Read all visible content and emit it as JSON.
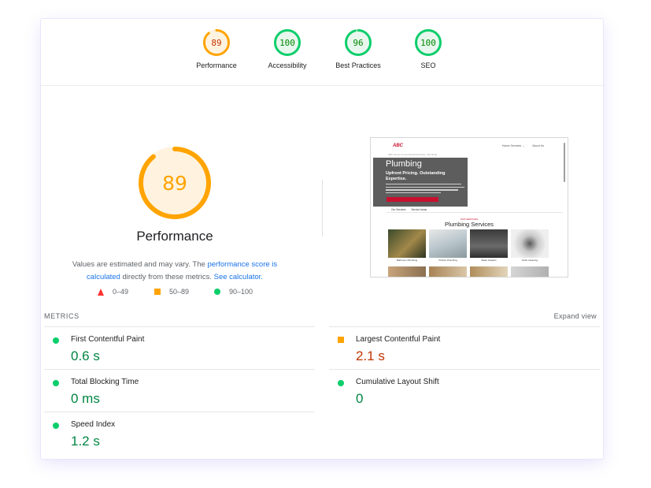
{
  "categories": [
    {
      "label": "Performance",
      "score": "89",
      "value": 89,
      "color": "#ffa400",
      "text_color": "#c33300",
      "fill": "#fff3e0"
    },
    {
      "label": "Accessibility",
      "score": "100",
      "value": 100,
      "color": "#0cce6b",
      "text_color": "#008800",
      "fill": "#e8f7ee"
    },
    {
      "label": "Best Practices",
      "score": "96",
      "value": 96,
      "color": "#0cce6b",
      "text_color": "#008800",
      "fill": "#e8f7ee"
    },
    {
      "label": "SEO",
      "score": "100",
      "value": 100,
      "color": "#0cce6b",
      "text_color": "#008800",
      "fill": "#e8f7ee"
    }
  ],
  "performance": {
    "score": "89",
    "value": 89,
    "title": "Performance",
    "desc_prefix": "Values are estimated and may vary. The ",
    "link_score": "performance score is calculated",
    "desc_mid": " directly from these metrics. ",
    "link_calc": "See calculator.",
    "colors": {
      "arc": "#ffa400",
      "fill": "#fff3e0",
      "text": "#ffa400"
    }
  },
  "legend": {
    "fail": "0–49",
    "average": "50–89",
    "pass": "90–100"
  },
  "screenshot": {
    "logo": "ABC",
    "nav": [
      "Home Services ⌄",
      "About Us"
    ],
    "breadcrumb": "ABC Home & Commercial Services  ›  Plumbing",
    "title": "Plumbing",
    "subtitle": "Upfront Pricing. Outstanding Expertise.",
    "tabs": [
      "Our Services",
      "Service Areas"
    ],
    "kicker": "OUR SERVICES",
    "section_title": "Plumbing Services",
    "tiles": [
      "Bathroom Plumbing",
      "Kitchen Plumbing",
      "Water Heaters",
      "Drain Cleaning"
    ]
  },
  "metrics": {
    "header": "METRICS",
    "expand": "Expand view",
    "items": [
      {
        "name": "First Contentful Paint",
        "value": "0.6 s",
        "status": "good"
      },
      {
        "name": "Largest Contentful Paint",
        "value": "2.1 s",
        "status": "average"
      },
      {
        "name": "Total Blocking Time",
        "value": "0 ms",
        "status": "good"
      },
      {
        "name": "Cumulative Layout Shift",
        "value": "0",
        "status": "good"
      },
      {
        "name": "Speed Index",
        "value": "1.2 s",
        "status": "good"
      }
    ]
  }
}
